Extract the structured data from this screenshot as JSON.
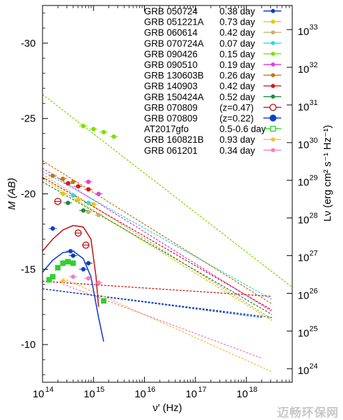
{
  "chart_data": {
    "type": "scatter",
    "xlabel": "ν′ (Hz)",
    "ylabel_left": "M (AB)",
    "ylabel_right": "Lν (erg cm² s⁻¹ Hz⁻¹)",
    "x_scale": "log",
    "x_range_log10": [
      14,
      18.9
    ],
    "y_range": [
      -32.5,
      -7.5
    ],
    "y_inverted": true,
    "x_ticks": [
      {
        "log10": 14,
        "base": "10",
        "exp": "14"
      },
      {
        "log10": 15,
        "base": "10",
        "exp": "15"
      },
      {
        "log10": 16,
        "base": "10",
        "exp": "16"
      },
      {
        "log10": 17,
        "base": "10",
        "exp": "17"
      },
      {
        "log10": 18,
        "base": "10",
        "exp": "18"
      }
    ],
    "y_ticks": [
      {
        "value": -30,
        "label": "-30"
      },
      {
        "value": -25,
        "label": "-25"
      },
      {
        "value": -20,
        "label": "-20"
      },
      {
        "value": -15,
        "label": "-15"
      },
      {
        "value": -10,
        "label": "-10"
      }
    ],
    "right_ticks": [
      {
        "log10L": 33,
        "base": "10",
        "exp": "33"
      },
      {
        "log10L": 32,
        "base": "10",
        "exp": "32"
      },
      {
        "log10L": 31,
        "base": "10",
        "exp": "31"
      },
      {
        "log10L": 30,
        "base": "10",
        "exp": "30"
      },
      {
        "log10L": 29,
        "base": "10",
        "exp": "29"
      },
      {
        "log10L": 28,
        "base": "10",
        "exp": "28"
      },
      {
        "log10L": 27,
        "base": "10",
        "exp": "27"
      },
      {
        "log10L": 26,
        "base": "10",
        "exp": "26"
      },
      {
        "log10L": 25,
        "base": "10",
        "exp": "25"
      },
      {
        "log10L": 24,
        "base": "10",
        "exp": "24"
      }
    ],
    "legend_position": "top-right",
    "series": [
      {
        "name": "GRB 050724",
        "time": "0.38 day",
        "color": "#0a3db8",
        "marker": "filled-circle",
        "fit": [
          [
            14.0,
            -13.7
          ],
          [
            18.5,
            -11.8
          ]
        ],
        "points": [
          [
            14.6,
            -15.9
          ],
          [
            14.9,
            -15.4
          ]
        ]
      },
      {
        "name": "GRB 051221A",
        "time": "0.73 day",
        "color": "#e8c800",
        "marker": "filled-circle",
        "fit": [
          [
            14.0,
            -21.0
          ],
          [
            18.5,
            -11.6
          ]
        ],
        "points": [
          [
            14.4,
            -20.0
          ],
          [
            14.7,
            -19.6
          ],
          [
            15.0,
            -19.3
          ]
        ]
      },
      {
        "name": "GRB 060614",
        "time": "0.42 day",
        "color": "#c8b070",
        "marker": "filled-circle",
        "fit": [
          [
            14.0,
            -21.3
          ],
          [
            18.5,
            -11.7
          ]
        ],
        "points": [
          [
            14.9,
            -18.8
          ],
          [
            15.1,
            -18.6
          ]
        ]
      },
      {
        "name": "GRB 070724A",
        "time": "0.07 day",
        "color": "#2fd8e0",
        "marker": "filled-circle",
        "fit": [
          [
            14.0,
            -21.5
          ],
          [
            18.5,
            -13.0
          ]
        ],
        "points": [
          [
            14.6,
            -19.9
          ],
          [
            14.9,
            -19.4
          ]
        ]
      },
      {
        "name": "GRB 090426",
        "time": "0.15 day",
        "color": "#7fe000",
        "marker": "filled-circle",
        "fit": [
          [
            14.0,
            -26.6
          ],
          [
            18.9,
            -13.8
          ]
        ],
        "points": [
          [
            14.8,
            -24.5
          ],
          [
            15.0,
            -24.3
          ],
          [
            15.2,
            -24.1
          ],
          [
            15.4,
            -23.8
          ]
        ]
      },
      {
        "name": "GRB 090510",
        "time": "0.19 day",
        "color": "#e040e0",
        "marker": "filled-circle",
        "fit": [
          [
            14.0,
            -21.7
          ],
          [
            18.5,
            -12.2
          ]
        ],
        "points": [
          [
            14.9,
            -20.8
          ],
          [
            15.1,
            -20.0
          ]
        ]
      },
      {
        "name": "GRB 130603B",
        "time": "0.26 day",
        "color": "#c07818",
        "marker": "filled-circle",
        "fit": [
          [
            14.0,
            -22.2
          ],
          [
            18.5,
            -12.7
          ]
        ],
        "points": [
          [
            14.2,
            -21.2
          ],
          [
            14.4,
            -21.0
          ],
          [
            14.6,
            -20.8
          ]
        ]
      },
      {
        "name": "GRB 140903",
        "time": "0.42 day",
        "color": "#d81818",
        "marker": "filled-circle",
        "fit": [
          [
            14.0,
            -21.1
          ],
          [
            18.5,
            -12.3
          ]
        ],
        "points": [
          [
            14.5,
            -20.7
          ],
          [
            14.7,
            -20.5
          ],
          [
            14.9,
            -20.3
          ]
        ]
      },
      {
        "name": "GRB 150424A",
        "time": "0.52 day",
        "color": "#1a8a3a",
        "marker": "filled-circle",
        "fit": [
          [
            14.0,
            -20.8
          ],
          [
            18.5,
            -12.0
          ]
        ],
        "points": [
          [
            14.5,
            -19.4
          ],
          [
            14.8,
            -18.9
          ]
        ]
      },
      {
        "name": "GRB 070809",
        "time": "(z=0.47)",
        "color": "#c01818",
        "marker": "open-circle",
        "fit": [
          [
            14.0,
            -14.2
          ],
          [
            18.5,
            -13.2
          ]
        ],
        "curve": [
          [
            14.0,
            -16.2
          ],
          [
            14.2,
            -17.0
          ],
          [
            14.4,
            -17.6
          ],
          [
            14.6,
            -17.9
          ],
          [
            14.8,
            -17.8
          ],
          [
            14.95,
            -17.0
          ],
          [
            15.05,
            -14.5
          ],
          [
            15.1,
            -12.5
          ]
        ],
        "points": [
          [
            14.3,
            -19.5
          ],
          [
            14.7,
            -17.4
          ],
          [
            14.85,
            -16.6
          ]
        ]
      },
      {
        "name": "GRB 070809",
        "time": "(z=0.22)",
        "color": "#1040d0",
        "marker": "filled-circle",
        "fit": [
          [
            14.0,
            -13.7
          ],
          [
            18.3,
            -11.8
          ]
        ],
        "curve": [
          [
            14.0,
            -14.8
          ],
          [
            14.2,
            -15.6
          ],
          [
            14.4,
            -16.1
          ],
          [
            14.6,
            -16.2
          ],
          [
            14.8,
            -15.7
          ],
          [
            14.95,
            -14.5
          ],
          [
            15.1,
            -11.8
          ],
          [
            15.2,
            -10.2
          ]
        ],
        "points": [
          [
            14.2,
            -17.7
          ],
          [
            14.55,
            -16.2
          ],
          [
            14.8,
            -15.0
          ]
        ]
      },
      {
        "name": "AT2017gfo",
        "time": "0.5-0.6 day",
        "color": "#30d030",
        "marker": "open-square",
        "points": [
          [
            14.13,
            -14.3
          ],
          [
            14.2,
            -14.5
          ],
          [
            14.3,
            -15.1
          ],
          [
            14.4,
            -15.4
          ],
          [
            14.5,
            -15.5
          ],
          [
            14.6,
            -15.4
          ],
          [
            15.2,
            -12.9
          ]
        ]
      },
      {
        "name": "GRB 160821B",
        "time": "0.93 day",
        "color": "#f0c040",
        "marker": "filled-circle",
        "fit": [
          [
            14.4,
            -14.4
          ],
          [
            18.5,
            -8.2
          ]
        ],
        "points": [
          [
            14.4,
            -14.2
          ]
        ]
      },
      {
        "name": "GRB 061201",
        "time": "0.34 day",
        "color": "#f080c0",
        "marker": "filled-circle",
        "fit": [
          [
            14.4,
            -14.0
          ],
          [
            18.3,
            -9.1
          ]
        ],
        "points": [
          [
            14.6,
            -14.5
          ],
          [
            14.9,
            -14.4
          ],
          [
            15.1,
            -14.1
          ]
        ]
      }
    ]
  },
  "legend": {
    "rows": [
      {
        "name": "GRB 050724",
        "time": "0.38 day"
      },
      {
        "name": "GRB 051221A",
        "time": "0.73 day"
      },
      {
        "name": "GRB 060614",
        "time": "0.42 day"
      },
      {
        "name": "GRB 070724A",
        "time": "0.07 day"
      },
      {
        "name": "GRB 090426",
        "time": "0.15 day"
      },
      {
        "name": "GRB 090510",
        "time": "0.19 day"
      },
      {
        "name": "GRB 130603B",
        "time": "0.26 day"
      },
      {
        "name": "GRB 140903",
        "time": "0.42 day"
      },
      {
        "name": "GRB 150424A",
        "time": "0.52 day"
      },
      {
        "name": "GRB 070809",
        "time": "(z=0.47)"
      },
      {
        "name": "GRB 070809",
        "time": "(z=0.22)"
      },
      {
        "name": "AT2017gfo",
        "time": "0.5-0.6 day"
      },
      {
        "name": "GRB 160821B",
        "time": "0.93 day"
      },
      {
        "name": "GRB 061201",
        "time": "0.34 day"
      }
    ]
  },
  "watermark": {
    "text": "迈畅环保网"
  }
}
